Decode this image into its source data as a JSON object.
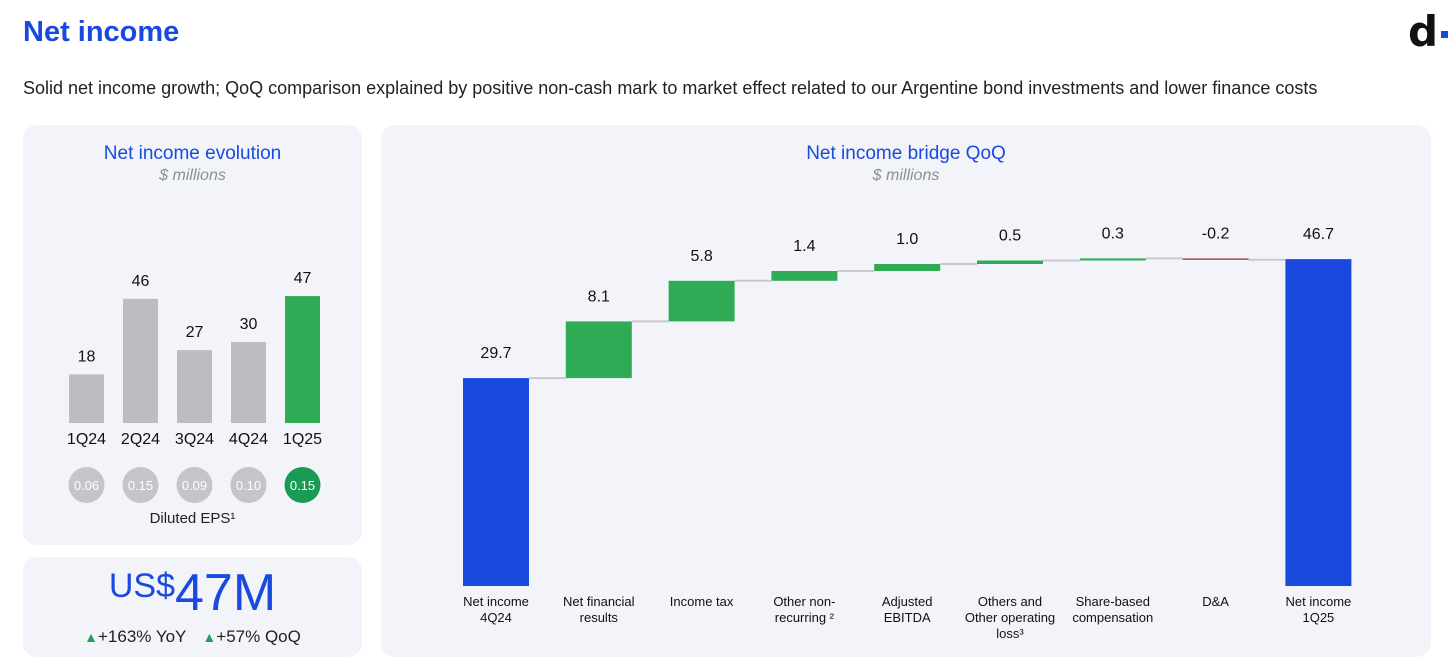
{
  "page": {
    "title": "Net income",
    "subtitle": "Solid net income growth; QoQ comparison explained by positive non-cash mark to market effect related to our Argentine bond investments and lower finance costs",
    "logo_text": "d"
  },
  "kpi": {
    "currency": "US$",
    "amount": "47M",
    "yoy": "+163% YoY",
    "qoq": "+57% QoQ",
    "up_symbol": "▲"
  },
  "colors": {
    "brand_blue": "#1a49e0",
    "green": "#2faa55",
    "grey_bar": "#bcbdc0",
    "eps_green": "#1a9a55",
    "negative": "#b4424a"
  },
  "chart_data": [
    {
      "type": "bar",
      "title": "Net income evolution",
      "unit": "$ millions",
      "categories": [
        "1Q24",
        "2Q24",
        "3Q24",
        "4Q24",
        "1Q25"
      ],
      "values": [
        18,
        46,
        27,
        30,
        47
      ],
      "highlight_index": 4,
      "eps": {
        "label": "Diluted EPS¹",
        "values": [
          "0.06",
          "0.15",
          "0.09",
          "0.10",
          "0.15"
        ]
      }
    },
    {
      "type": "waterfall",
      "title": "Net income bridge QoQ",
      "unit": "$ millions",
      "steps": [
        {
          "label": [
            "Net income",
            "4Q24"
          ],
          "value": "29.7",
          "kind": "total"
        },
        {
          "label": [
            "Net financial",
            "results"
          ],
          "value": "8.1",
          "kind": "increase"
        },
        {
          "label": [
            "Income tax"
          ],
          "value": "5.8",
          "kind": "increase"
        },
        {
          "label": [
            "Other non-",
            "recurring ²"
          ],
          "value": "1.4",
          "kind": "increase"
        },
        {
          "label": [
            "Adjusted",
            "EBITDA"
          ],
          "value": "1.0",
          "kind": "increase"
        },
        {
          "label": [
            "Others and",
            "Other operating",
            "loss³"
          ],
          "value": "0.5",
          "kind": "increase"
        },
        {
          "label": [
            "Share-based",
            "compensation"
          ],
          "value": "0.3",
          "kind": "increase"
        },
        {
          "label": [
            "D&A"
          ],
          "value": "-0.2",
          "kind": "decrease"
        },
        {
          "label": [
            "Net income",
            "1Q25"
          ],
          "value": "46.7",
          "kind": "total"
        }
      ]
    }
  ]
}
